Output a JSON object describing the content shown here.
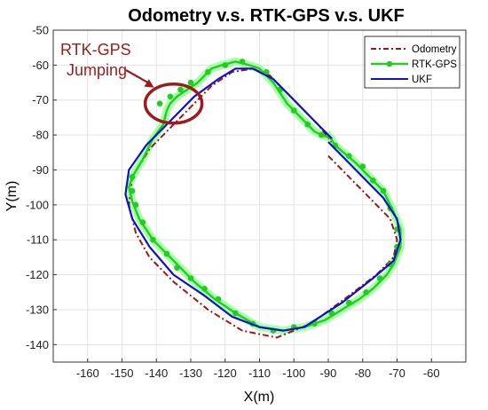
{
  "chart_data": {
    "type": "line",
    "title": "Odometry v.s. RTK-GPS v.s. UKF",
    "xlabel": "X(m)",
    "ylabel": "Y(m)",
    "xlim": [
      -170,
      -50
    ],
    "ylim": [
      -145,
      -50
    ],
    "xticks": [
      -160,
      -150,
      -140,
      -130,
      -120,
      -110,
      -100,
      -90,
      -80,
      -70,
      -60
    ],
    "yticks": [
      -50,
      -60,
      -70,
      -80,
      -90,
      -100,
      -110,
      -120,
      -130,
      -140
    ],
    "grid": true,
    "legend_position": "top-right",
    "annotation": {
      "line1": "RTK-GPS",
      "line2": "Jumping",
      "target_x": -135,
      "target_y": -71
    },
    "colors": {
      "odometry": "#a31515",
      "rtk": "#22cc22",
      "rtk_glow": "#99ff99",
      "ukf": "#1111cc",
      "annotation": "#9b1c1c"
    },
    "series": [
      {
        "name": "Odometry",
        "style": "dash-dot",
        "points": [
          [
            -90,
            -86
          ],
          [
            -80,
            -96
          ],
          [
            -72,
            -104
          ],
          [
            -70,
            -110
          ],
          [
            -71,
            -115
          ],
          [
            -76,
            -120
          ],
          [
            -84,
            -126
          ],
          [
            -95,
            -134
          ],
          [
            -105,
            -138
          ],
          [
            -115,
            -136
          ],
          [
            -125,
            -130
          ],
          [
            -135,
            -122
          ],
          [
            -142,
            -115
          ],
          [
            -146,
            -108
          ],
          [
            -148,
            -100
          ],
          [
            -147,
            -92
          ],
          [
            -142,
            -84
          ],
          [
            -136,
            -78
          ],
          [
            -130,
            -72
          ],
          [
            -124,
            -66
          ],
          [
            -118,
            -62
          ],
          [
            -112,
            -61
          ],
          [
            -107,
            -63
          ],
          [
            -100,
            -70
          ],
          [
            -93,
            -77
          ],
          [
            -89,
            -82
          ]
        ]
      },
      {
        "name": "RTK-GPS",
        "style": "line-marker",
        "points": [
          [
            -90,
            -80
          ],
          [
            -88,
            -83
          ],
          [
            -82,
            -88
          ],
          [
            -78,
            -92
          ],
          [
            -74,
            -96
          ],
          [
            -71,
            -102
          ],
          [
            -69,
            -107
          ],
          [
            -69,
            -112
          ],
          [
            -71,
            -117
          ],
          [
            -73,
            -120
          ],
          [
            -77,
            -124
          ],
          [
            -81,
            -127
          ],
          [
            -86,
            -130
          ],
          [
            -91,
            -133
          ],
          [
            -97,
            -135
          ],
          [
            -103,
            -136
          ],
          [
            -110,
            -135
          ],
          [
            -117,
            -131
          ],
          [
            -123,
            -127
          ],
          [
            -129,
            -122
          ],
          [
            -133,
            -118
          ],
          [
            -137,
            -114
          ],
          [
            -141,
            -110
          ],
          [
            -145,
            -104
          ],
          [
            -147,
            -99
          ],
          [
            -148,
            -95
          ],
          [
            -147,
            -92
          ],
          [
            -144,
            -87
          ],
          [
            -141,
            -81
          ],
          [
            -138,
            -77
          ],
          [
            -137,
            -73
          ],
          [
            -136,
            -71
          ],
          [
            -134,
            -69
          ],
          [
            -131,
            -67
          ],
          [
            -128,
            -65
          ],
          [
            -126,
            -63
          ],
          [
            -124,
            -61
          ],
          [
            -121,
            -60
          ],
          [
            -117,
            -59
          ],
          [
            -113,
            -60
          ],
          [
            -110,
            -61
          ],
          [
            -108,
            -63
          ],
          [
            -106,
            -65
          ],
          [
            -104,
            -68
          ],
          [
            -102,
            -71
          ],
          [
            -100,
            -73
          ],
          [
            -98,
            -75
          ],
          [
            -96,
            -77
          ],
          [
            -94,
            -79
          ],
          [
            -92,
            -80
          ],
          [
            -89,
            -81
          ]
        ],
        "marker_points": [
          [
            -125,
            -62
          ],
          [
            -120,
            -60
          ],
          [
            -115,
            -59
          ],
          [
            -108,
            -62
          ],
          [
            -104,
            -67
          ],
          [
            -100,
            -73
          ],
          [
            -96,
            -77
          ],
          [
            -92,
            -80
          ],
          [
            -88,
            -83
          ],
          [
            -84,
            -86
          ],
          [
            -80,
            -89
          ],
          [
            -77,
            -93
          ],
          [
            -74,
            -96
          ],
          [
            -72,
            -101
          ],
          [
            -70,
            -107
          ],
          [
            -70,
            -112
          ],
          [
            -72,
            -117
          ],
          [
            -75,
            -121
          ],
          [
            -79,
            -125
          ],
          [
            -84,
            -128
          ],
          [
            -89,
            -131
          ],
          [
            -94,
            -134
          ],
          [
            -100,
            -135
          ],
          [
            -106,
            -136
          ],
          [
            -112,
            -134
          ],
          [
            -117,
            -131
          ],
          [
            -122,
            -127
          ],
          [
            -126,
            -124
          ],
          [
            -130,
            -121
          ],
          [
            -134,
            -118
          ],
          [
            -137,
            -114
          ],
          [
            -141,
            -110
          ],
          [
            -144,
            -105
          ],
          [
            -146,
            -100
          ],
          [
            -147,
            -96
          ],
          [
            -147,
            -92
          ],
          [
            -139,
            -71
          ],
          [
            -136,
            -69
          ],
          [
            -133,
            -67
          ],
          [
            -130,
            -65
          ]
        ]
      },
      {
        "name": "UKF",
        "style": "solid",
        "points": [
          [
            -90,
            -82
          ],
          [
            -82,
            -90
          ],
          [
            -74,
            -98
          ],
          [
            -70,
            -104
          ],
          [
            -69,
            -110
          ],
          [
            -71,
            -116
          ],
          [
            -77,
            -121
          ],
          [
            -86,
            -128
          ],
          [
            -97,
            -135
          ],
          [
            -103,
            -136
          ],
          [
            -110,
            -135
          ],
          [
            -118,
            -132
          ],
          [
            -126,
            -126
          ],
          [
            -135,
            -120
          ],
          [
            -142,
            -112
          ],
          [
            -147,
            -104
          ],
          [
            -149,
            -97
          ],
          [
            -148,
            -90
          ],
          [
            -143,
            -83
          ],
          [
            -136,
            -76
          ],
          [
            -129,
            -69
          ],
          [
            -122,
            -64
          ],
          [
            -117,
            -61
          ],
          [
            -112,
            -61
          ],
          [
            -106,
            -64
          ],
          [
            -100,
            -70
          ],
          [
            -94,
            -76
          ],
          [
            -89,
            -81
          ]
        ]
      }
    ]
  }
}
